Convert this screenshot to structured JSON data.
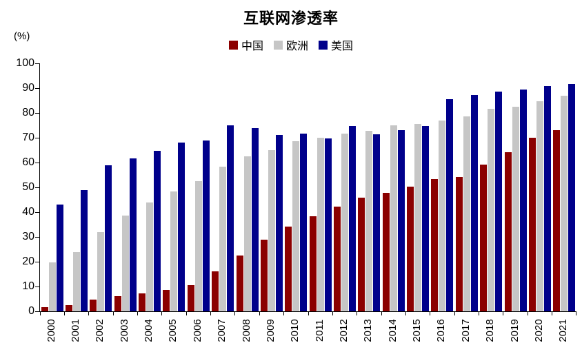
{
  "chart": {
    "title": "互联网渗透率",
    "unit_label": "(%)"
  },
  "chart_data": {
    "type": "bar",
    "title": "互联网渗透率",
    "ylabel": "(%)",
    "xlabel": "",
    "ylim": [
      0,
      100
    ],
    "yticks": [
      0,
      10,
      20,
      30,
      40,
      50,
      60,
      70,
      80,
      90,
      100
    ],
    "grid": false,
    "legend_position": "top-center",
    "categories": [
      "2000",
      "2001",
      "2002",
      "2003",
      "2004",
      "2005",
      "2006",
      "2007",
      "2008",
      "2009",
      "2010",
      "2011",
      "2012",
      "2013",
      "2014",
      "2015",
      "2016",
      "2017",
      "2018",
      "2019",
      "2020",
      "2021"
    ],
    "series": [
      {
        "key": "china",
        "name": "中国",
        "color": "#8B0000",
        "values": [
          1.8,
          2.6,
          4.6,
          6.2,
          7.3,
          8.5,
          10.5,
          16.0,
          22.6,
          28.9,
          34.3,
          38.3,
          42.3,
          45.8,
          47.9,
          50.3,
          53.2,
          54.3,
          59.2,
          64.1,
          70.0,
          73.1
        ]
      },
      {
        "key": "europe",
        "name": "欧洲",
        "color": "#C6C6C6",
        "values": [
          19.7,
          24.0,
          32.0,
          38.6,
          44.0,
          48.3,
          52.6,
          58.2,
          62.4,
          64.9,
          68.7,
          69.9,
          71.6,
          72.9,
          75.1,
          75.5,
          76.9,
          78.5,
          81.6,
          82.5,
          84.6,
          87.0
        ]
      },
      {
        "key": "usa",
        "name": "美国",
        "color": "#00008B",
        "values": [
          43.1,
          49.0,
          58.8,
          61.7,
          64.8,
          68.0,
          68.9,
          75.0,
          74.0,
          71.0,
          71.7,
          69.7,
          74.7,
          71.4,
          73.0,
          74.6,
          85.5,
          87.3,
          88.5,
          89.4,
          90.9,
          91.8
        ]
      }
    ]
  }
}
